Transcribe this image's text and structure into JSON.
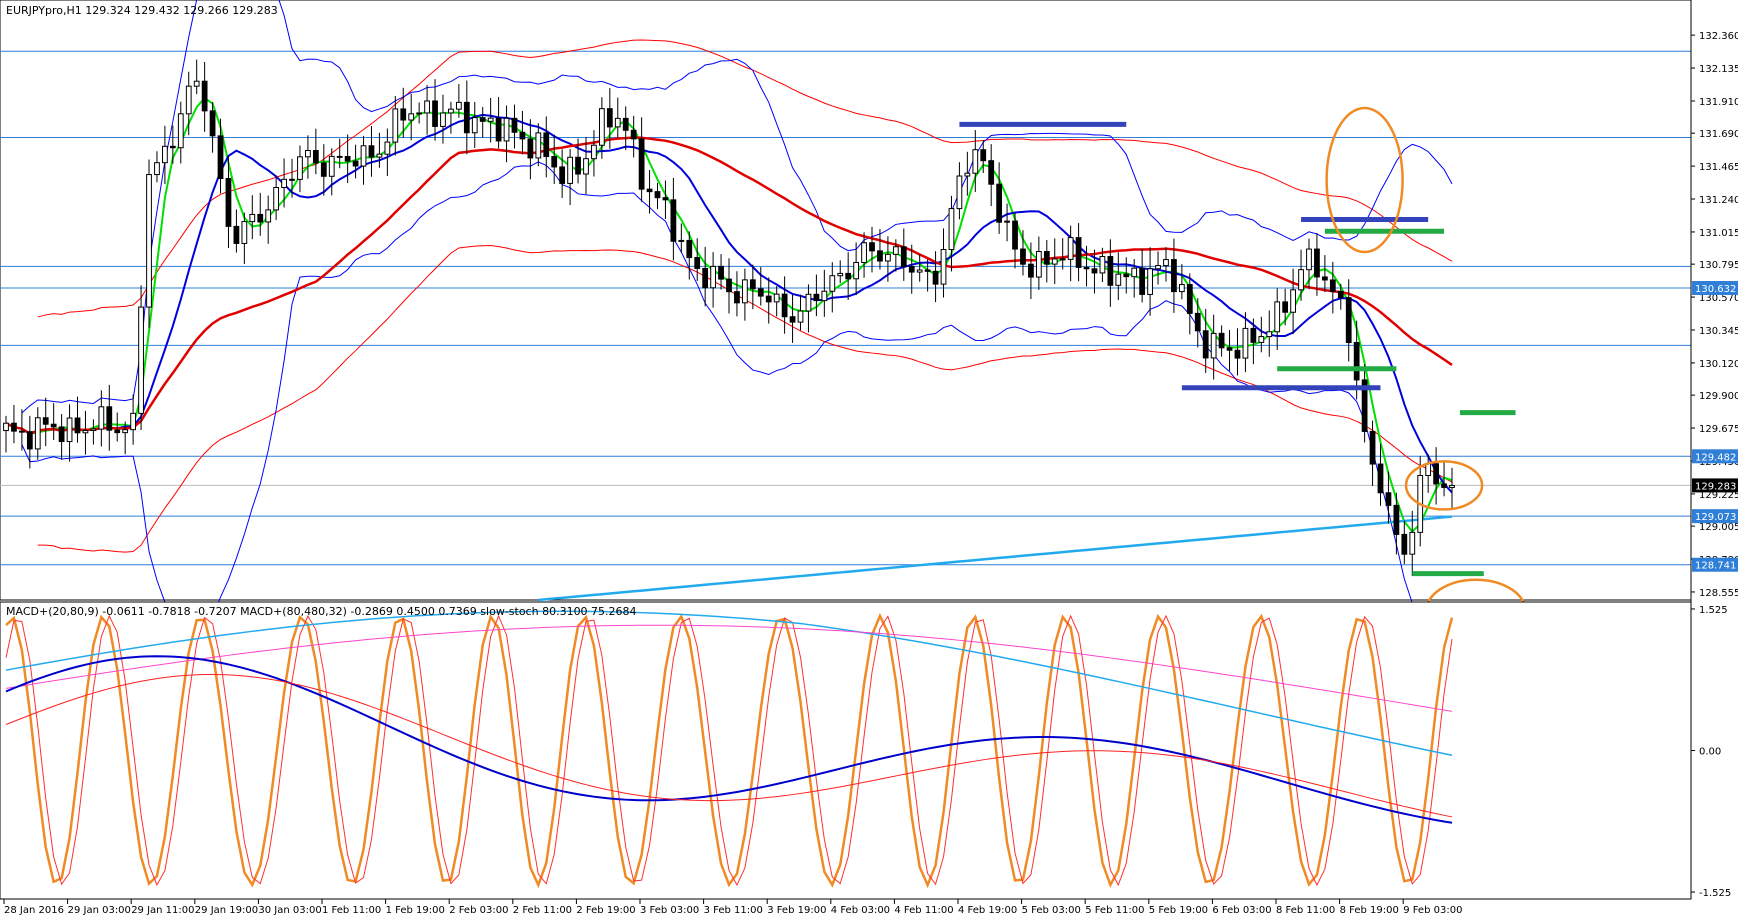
{
  "window": {
    "main_header": "EURJPYpro,H1  129.324 129.432 129.266 129.283",
    "sub_header": "MACD+(20,80,9) -0.0611 -0.7818 -0.7207  MACD+(80,480,32) -0.2869 0.4500 0.7369  slow-stoch 80.3100 75.2684"
  },
  "colors": {
    "hline": "#2f7fd8",
    "bb": "#0000ff",
    "env": "#ff0000",
    "ma_fast": "#00e000",
    "ma_mid": "#0000dd",
    "ma_slow": "#e00000",
    "ma_long": "#22aaee",
    "level_blue": "#3344bb",
    "level_green": "#22aa44",
    "circle": "#f08a24",
    "stoch_orange": "#f08a24",
    "stoch_red": "#ff3030",
    "macd_slow_main": "#22aaee",
    "macd_slow_signal": "#ff44cc",
    "macd_fast_main": "#0000cc",
    "macd_fast_signal": "#ff2020"
  },
  "chart_data": [
    {
      "type": "candlestick",
      "symbol": "EURJPYpro",
      "timeframe": "H1",
      "ohlc_last": {
        "open": 129.324,
        "high": 129.432,
        "low": 129.266,
        "close": 129.283
      },
      "ylim": [
        128.5,
        132.6
      ],
      "y_ticks": [
        "132.360",
        "132.135",
        "131.910",
        "131.690",
        "131.465",
        "131.240",
        "131.015",
        "130.795",
        "130.570",
        "130.345",
        "130.120",
        "129.900",
        "129.675",
        "129.450",
        "129.225",
        "129.005",
        "128.780",
        "128.555"
      ],
      "x_ticks": [
        "28 Jan 2016",
        "29 Jan 03:00",
        "29 Jan 11:00",
        "29 Jan 19:00",
        "30 Jan 03:00",
        "1 Feb 11:00",
        "1 Feb 19:00",
        "2 Feb 03:00",
        "2 Feb 11:00",
        "2 Feb 19:00",
        "3 Feb 03:00",
        "3 Feb 11:00",
        "3 Feb 19:00",
        "4 Feb 03:00",
        "4 Feb 11:00",
        "4 Feb 19:00",
        "5 Feb 03:00",
        "5 Feb 11:00",
        "5 Feb 19:00",
        "6 Feb 03:00",
        "8 Feb 11:00",
        "8 Feb 19:00",
        "9 Feb 03:00"
      ],
      "horizontal_levels": [
        132.25,
        131.66,
        130.78,
        130.632,
        130.24,
        129.482,
        129.073,
        128.741
      ],
      "price_tags": [
        {
          "value": 130.632,
          "label": "130.632",
          "color": "#2f7fd8"
        },
        {
          "value": 129.482,
          "label": "129.482",
          "color": "#2f7fd8"
        },
        {
          "value": 129.283,
          "label": "129.283",
          "color": "#000000"
        },
        {
          "value": 129.073,
          "label": "129.073",
          "color": "#2f7fd8"
        },
        {
          "value": 128.741,
          "label": "128.741",
          "color": "#2f7fd8"
        }
      ],
      "key_points": [
        {
          "t": 0,
          "p": 129.65
        },
        {
          "t": 16,
          "p": 129.7
        },
        {
          "t": 18,
          "p": 131.4
        },
        {
          "t": 24,
          "p": 132.0
        },
        {
          "t": 29,
          "p": 131.0
        },
        {
          "t": 38,
          "p": 131.5
        },
        {
          "t": 44,
          "p": 131.5
        },
        {
          "t": 52,
          "p": 131.85
        },
        {
          "t": 58,
          "p": 131.8
        },
        {
          "t": 66,
          "p": 131.65
        },
        {
          "t": 70,
          "p": 131.4
        },
        {
          "t": 77,
          "p": 131.8
        },
        {
          "t": 82,
          "p": 131.2
        },
        {
          "t": 88,
          "p": 130.7
        },
        {
          "t": 94,
          "p": 130.6
        },
        {
          "t": 100,
          "p": 130.45
        },
        {
          "t": 104,
          "p": 130.7
        },
        {
          "t": 110,
          "p": 130.9
        },
        {
          "t": 116,
          "p": 130.7
        },
        {
          "t": 122,
          "p": 131.55
        },
        {
          "t": 128,
          "p": 130.8
        },
        {
          "t": 134,
          "p": 130.85
        },
        {
          "t": 140,
          "p": 130.7
        },
        {
          "t": 146,
          "p": 130.75
        },
        {
          "t": 152,
          "p": 130.2
        },
        {
          "t": 158,
          "p": 130.3
        },
        {
          "t": 164,
          "p": 130.8
        },
        {
          "t": 168,
          "p": 130.55
        },
        {
          "t": 172,
          "p": 129.4
        },
        {
          "t": 176,
          "p": 128.85
        },
        {
          "t": 179,
          "p": 129.4
        },
        {
          "t": 182,
          "p": 129.283
        }
      ],
      "sr_segments": [
        {
          "color": "blue",
          "t1": 120,
          "t2": 141,
          "p": 131.75
        },
        {
          "color": "blue",
          "t1": 163,
          "t2": 179,
          "p": 131.1
        },
        {
          "color": "green",
          "t1": 166,
          "t2": 181,
          "p": 131.02
        },
        {
          "color": "blue",
          "t1": 148,
          "t2": 173,
          "p": 129.95
        },
        {
          "color": "green",
          "t1": 160,
          "t2": 175,
          "p": 130.08
        },
        {
          "color": "green",
          "t1": 183,
          "t2": 190,
          "p": 129.78
        },
        {
          "color": "green",
          "t1": 177,
          "t2": 186,
          "p": 128.68
        }
      ],
      "annotations": [
        "ellipse upper right",
        "ellipse at current price",
        "ellipse below price"
      ]
    },
    {
      "type": "line",
      "indicator": "MACD+ / slow-stoch",
      "y_ticks": [
        "1.525",
        "0.00",
        "-1.525"
      ],
      "ylim": [
        -1.6,
        1.6
      ]
    }
  ]
}
